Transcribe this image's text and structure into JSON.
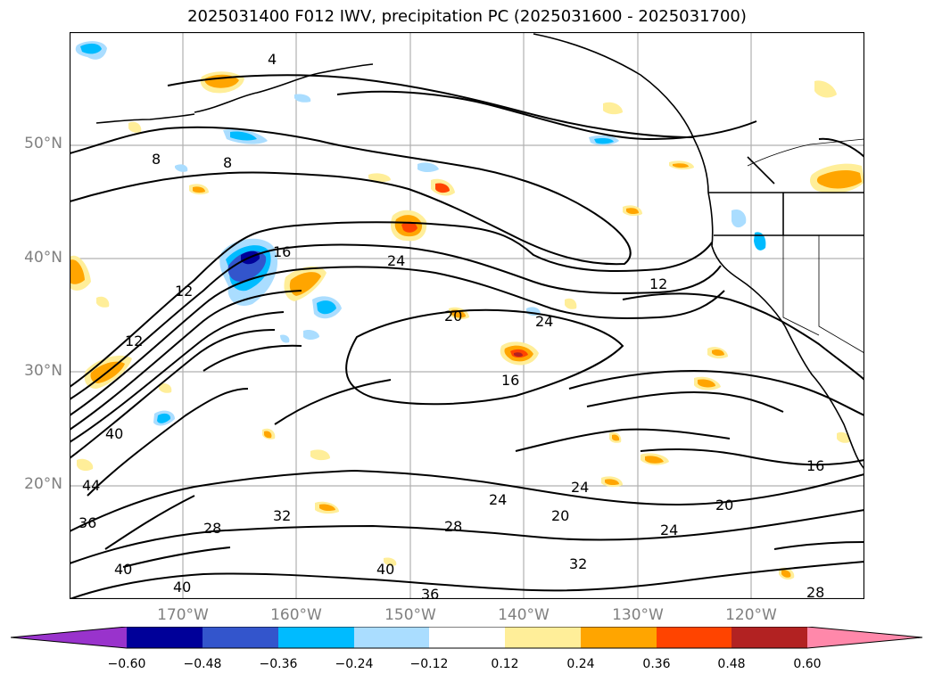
{
  "title": "2025031400 F012 IWV, precipitation PC (2025031600 - 2025031700)",
  "lat_labels": [
    "50°N",
    "40°N",
    "30°N",
    "20°N"
  ],
  "lon_labels": [
    "170°W",
    "160°W",
    "150°W",
    "140°W",
    "130°W",
    "120°W"
  ],
  "contour_labels": [
    "4",
    "8",
    "8",
    "12",
    "12",
    "12",
    "16",
    "16",
    "16",
    "20",
    "20",
    "20",
    "24",
    "24",
    "24",
    "24",
    "24",
    "28",
    "28",
    "28",
    "32",
    "32",
    "36",
    "36",
    "40",
    "40",
    "40",
    "40",
    "44"
  ],
  "colorbar": {
    "ticks": [
      "−0.60",
      "−0.48",
      "−0.36",
      "−0.24",
      "−0.12",
      "0.12",
      "0.24",
      "0.36",
      "0.48",
      "0.60"
    ],
    "colors": [
      "#9933cc",
      "#000099",
      "#3355cc",
      "#00bbff",
      "#aaddff",
      "#ffffff",
      "#ffee99",
      "#ffa500",
      "#ff4400",
      "#b22222",
      "#ff88aa"
    ]
  }
}
